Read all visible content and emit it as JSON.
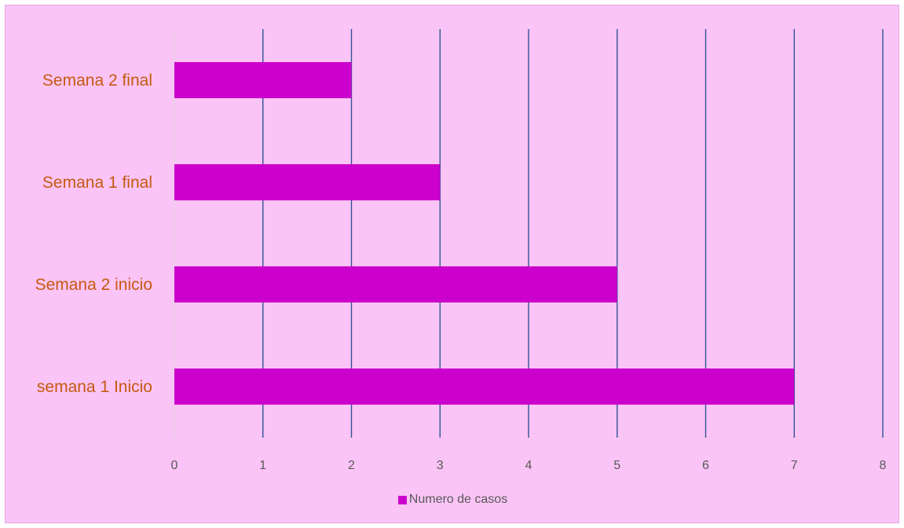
{
  "chart_data": {
    "type": "bar",
    "orientation": "horizontal",
    "categories": [
      "semana 1 Inicio",
      "Semana 2 inicio",
      "Semana 1 final",
      "Semana 2 final"
    ],
    "series": [
      {
        "name": "Numero de casos",
        "values": [
          7,
          5,
          3,
          2
        ]
      }
    ],
    "xlim": [
      0,
      8
    ],
    "x_ticks": [
      "0",
      "1",
      "2",
      "3",
      "4",
      "5",
      "6",
      "7",
      "8"
    ],
    "grid": true,
    "legend_position": "bottom",
    "colors": {
      "bar": "#cc00cc",
      "gridline": "#2f5597",
      "background": "#fbc4f6",
      "category_text": "#c55a11",
      "axis_text": "#595959"
    }
  }
}
